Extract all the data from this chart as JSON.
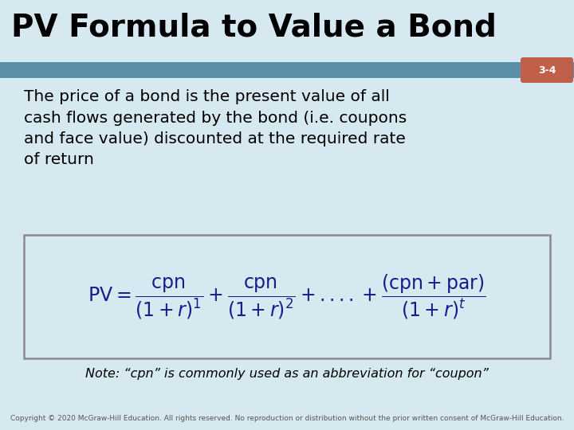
{
  "title": "PV Formula to Value a Bond",
  "slide_number": "3-4",
  "background_color": "#d6e8f0",
  "title_color": "#000000",
  "title_fontsize": 28,
  "stripe_color": "#5b8fa8",
  "badge_color": "#c0604a",
  "badge_text_color": "#ffffff",
  "badge_fontsize": 9,
  "body_text": "The price of a bond is the present value of all\ncash flows generated by the bond (i.e. coupons\nand face value) discounted at the required rate\nof return",
  "body_fontsize": 14.5,
  "body_color": "#000000",
  "formula_box_bg": "#d6e8f0",
  "formula_box_edge": "#888899",
  "formula_color": "#1a1a8c",
  "formula_fontsize": 17,
  "note_text": "Note: “cpn” is commonly used as an abbreviation for “coupon”",
  "note_fontsize": 11.5,
  "copyright_text": "Copyright © 2020 McGraw-Hill Education. All rights reserved. No reproduction or distribution without the prior written consent of McGraw-Hill Education.",
  "copyright_fontsize": 6.5
}
